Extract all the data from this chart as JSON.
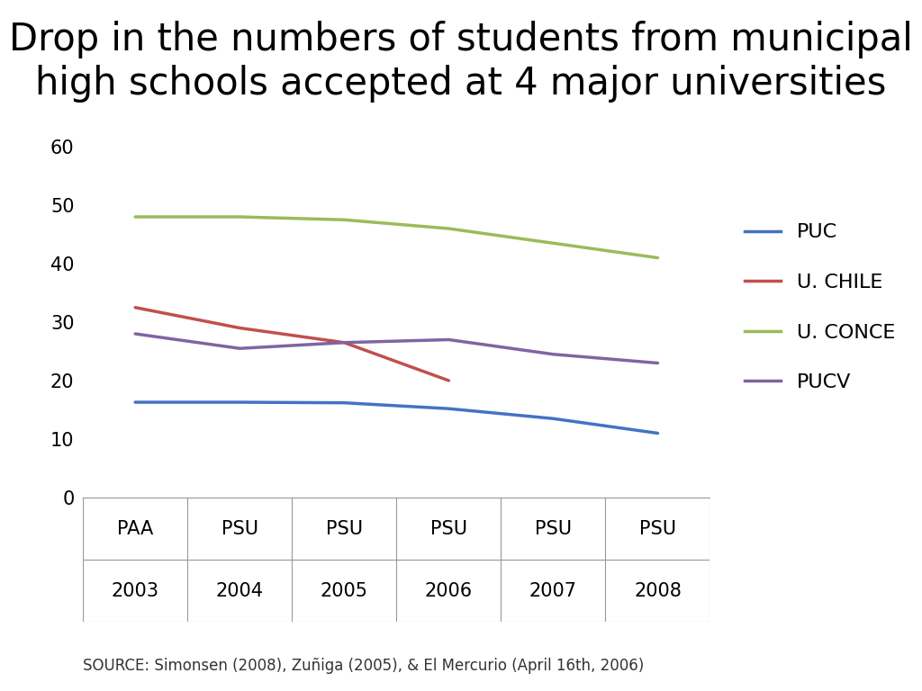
{
  "title": "Drop in the numbers of students from municipal\nhigh schools accepted at 4 major universities",
  "x_labels": [
    [
      "PAA",
      "2003"
    ],
    [
      "PSU",
      "2004"
    ],
    [
      "PSU",
      "2005"
    ],
    [
      "PSU",
      "2006"
    ],
    [
      "PSU",
      "2007"
    ],
    [
      "PSU",
      "2008"
    ]
  ],
  "x_positions": [
    0,
    1,
    2,
    3,
    4,
    5
  ],
  "series": [
    {
      "name": "PUC",
      "color": "#4472C4",
      "values": [
        16.3,
        16.3,
        16.2,
        15.2,
        13.5,
        11.0
      ]
    },
    {
      "name": "U. CHILE",
      "color": "#C0504D",
      "values": [
        32.5,
        29.0,
        26.5,
        20.0,
        null,
        null
      ]
    },
    {
      "name": "U. CONCE",
      "color": "#9BBB59",
      "values": [
        48.0,
        48.0,
        47.5,
        46.0,
        43.5,
        41.0
      ]
    },
    {
      "name": "PUCV",
      "color": "#8064A2",
      "values": [
        28.0,
        25.5,
        26.5,
        27.0,
        24.5,
        23.0
      ]
    }
  ],
  "ylim": [
    0,
    65
  ],
  "yticks": [
    0,
    10,
    20,
    30,
    40,
    50,
    60
  ],
  "source_text": "SOURCE: Simonsen (2008), Zuñiga (2005), & El Mercurio (April 16th, 2006)",
  "background_color": "#ffffff",
  "title_fontsize": 30,
  "legend_fontsize": 16,
  "tick_fontsize": 15,
  "source_fontsize": 12,
  "line_width": 2.5,
  "sep_color": "#999999",
  "sep_linewidth": 0.8
}
